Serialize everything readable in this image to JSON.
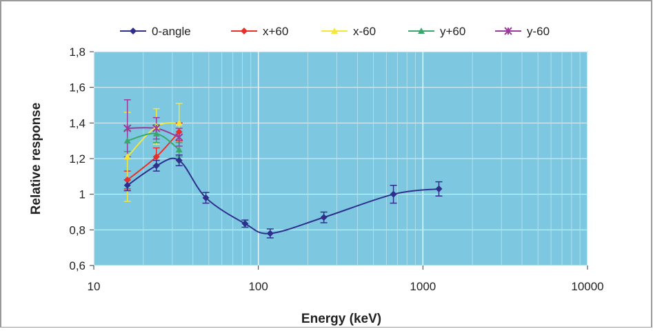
{
  "chart_data": {
    "type": "line",
    "xlabel": "Energy (keV)",
    "ylabel": "Relative response",
    "xscale": "log",
    "xlim": [
      10,
      10000
    ],
    "ylim": [
      0.6,
      1.8
    ],
    "xticks": [
      "10",
      "100",
      "1000",
      "10000"
    ],
    "yticks": [
      "0,6",
      "0,8",
      "1",
      "1,2",
      "1,4",
      "1,6",
      "1,8"
    ],
    "grid": true,
    "legend_position": "top",
    "plot_background": "#7DC8E0",
    "series": [
      {
        "name": "0-angle",
        "color": "#2E2E8C",
        "marker": "diamond",
        "x": [
          16,
          24,
          33,
          48,
          83,
          118,
          250,
          662,
          1250
        ],
        "y": [
          1.05,
          1.16,
          1.19,
          0.98,
          0.835,
          0.78,
          0.87,
          1.0,
          1.03
        ],
        "err": [
          0.03,
          0.03,
          0.03,
          0.03,
          0.02,
          0.025,
          0.03,
          0.05,
          0.04
        ]
      },
      {
        "name": "x+60",
        "color": "#E8302A",
        "marker": "diamond",
        "x": [
          16,
          24,
          33
        ],
        "y": [
          1.08,
          1.21,
          1.35
        ],
        "err": [
          0.05,
          0.05,
          0.05
        ]
      },
      {
        "name": "x-60",
        "color": "#F5E63C",
        "marker": "triangle",
        "x": [
          16,
          24,
          33
        ],
        "y": [
          1.21,
          1.38,
          1.4
        ],
        "err": [
          0.25,
          0.1,
          0.11
        ]
      },
      {
        "name": "y+60",
        "color": "#3AA86A",
        "marker": "triangle",
        "x": [
          16,
          24,
          33
        ],
        "y": [
          1.3,
          1.34,
          1.25
        ],
        "err": [
          0.06,
          0.05,
          0.04
        ]
      },
      {
        "name": "y-60",
        "color": "#9B3A9B",
        "marker": "x",
        "x": [
          16,
          24,
          33
        ],
        "y": [
          1.37,
          1.37,
          1.32
        ],
        "err": [
          0.16,
          0.06,
          0.05
        ]
      }
    ]
  }
}
